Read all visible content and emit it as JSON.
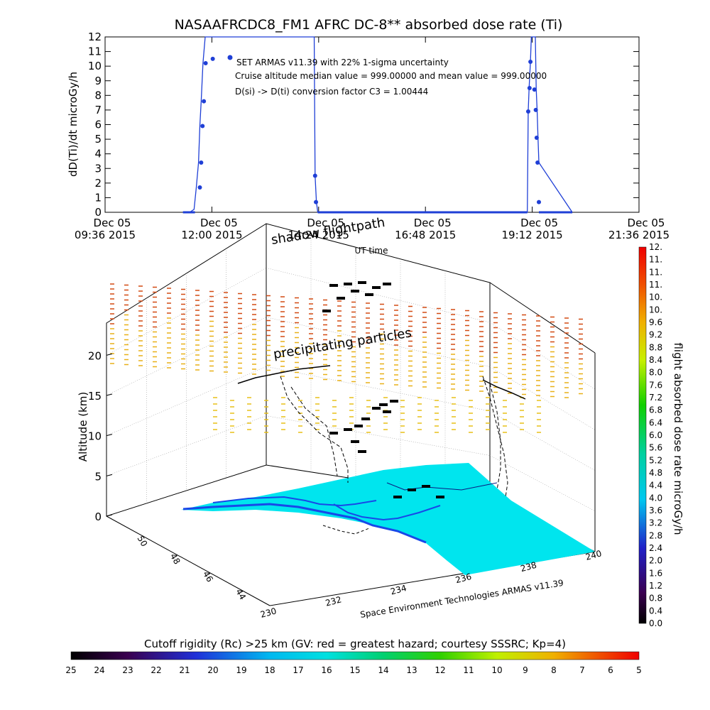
{
  "chart_data": [
    {
      "type": "line",
      "title": "NASAAFRCDC8_FM1 AFRC DC-8** absorbed dose rate (Ti)",
      "ylabel": "dD(Ti)/dt microGy/h",
      "xlabel": "UT time",
      "ylim": [
        0,
        12
      ],
      "yticks": [
        0,
        1,
        2,
        3,
        4,
        5,
        6,
        7,
        8,
        9,
        10,
        11,
        12
      ],
      "xlim_hours": [
        9.6,
        21.6
      ],
      "xticks": [
        {
          "date": "Dec 05",
          "time": "09:36 2015",
          "hour": 9.6
        },
        {
          "date": "Dec 05",
          "time": "12:00 2015",
          "hour": 12.0
        },
        {
          "date": "Dec 05",
          "time": "14:24 2015",
          "hour": 14.4
        },
        {
          "date": "Dec 05",
          "time": "16:48 2015",
          "hour": 16.8
        },
        {
          "date": "Dec 05",
          "time": "19:12 2015",
          "hour": 19.2
        },
        {
          "date": "Dec 05",
          "time": "21:36 2015",
          "hour": 21.6
        }
      ],
      "series": [
        {
          "name": "SET ARMAS v11.39 with 22% 1-sigma uncertainty",
          "color": "#1f3fd6",
          "x": [
            11.35,
            11.5,
            11.6,
            11.65,
            11.7,
            11.73,
            11.76,
            11.8,
            11.85,
            11.92,
            14.3,
            14.32,
            14.35,
            14.38,
            19.09,
            19.11,
            19.13,
            19.16,
            19.18,
            19.21,
            19.27,
            19.29,
            19.31,
            19.33,
            19.35,
            20.1
          ],
          "y": [
            0,
            0,
            0.2,
            1.7,
            3.4,
            5.9,
            7.6,
            10.2,
            12,
            12,
            12,
            2.5,
            0.7,
            0,
            0,
            6.9,
            8.5,
            10.3,
            12,
            12,
            12,
            8.4,
            7.0,
            5.1,
            3.4,
            0
          ],
          "markers": [
            [
              11.73,
              1.7
            ],
            [
              11.76,
              3.4
            ],
            [
              11.79,
              5.9
            ],
            [
              11.82,
              7.6
            ],
            [
              11.86,
              10.2
            ],
            [
              12.02,
              10.5
            ],
            [
              14.32,
              2.5
            ],
            [
              14.34,
              0.7
            ],
            [
              19.11,
              6.9
            ],
            [
              19.14,
              8.5
            ],
            [
              19.16,
              10.3
            ],
            [
              19.25,
              8.4
            ],
            [
              19.28,
              7.0
            ],
            [
              19.3,
              5.1
            ],
            [
              19.32,
              3.4
            ],
            [
              19.35,
              0.7
            ]
          ]
        }
      ],
      "annotations": [
        "SET ARMAS v11.39 with 22% 1-sigma uncertainty",
        "Cruise altitude median value = 999.00000 and mean value = 999.00000",
        "D(si) -> D(ti) conversion factor C3 = 1.00444"
      ]
    },
    {
      "type": "scatter",
      "zlabel": "Altitude (km)",
      "zticks": [
        0,
        5,
        10,
        15,
        20
      ],
      "zlim": [
        0,
        24
      ],
      "lat_ticks": [
        44,
        46,
        48,
        50
      ],
      "lon_ticks": [
        230,
        232,
        234,
        236,
        238,
        240
      ],
      "footer": "Space Environment Technologies ARMAS v11.39",
      "annotations": [
        "shadow flightpath",
        "precipitating particles"
      ],
      "colorbar": {
        "label": "flight absorbed dose rate microGy/h",
        "ticks": [
          "0.0",
          "0.4",
          "0.8",
          "1.2",
          "1.6",
          "2.0",
          "2.4",
          "2.8",
          "3.2",
          "3.6",
          "4.0",
          "4.4",
          "4.8",
          "5.2",
          "5.6",
          "6.0",
          "6.4",
          "6.8",
          "7.2",
          "7.6",
          "8.0",
          "8.4",
          "8.8",
          "9.2",
          "9.6",
          "10.",
          "10.",
          "11.",
          "11.",
          "11.",
          "12."
        ]
      }
    },
    {
      "type": "heatmap",
      "title": "Cutoff rigidity (Rc) >25 km (GV: red = greatest hazard; courtesy SSSRC; Kp=4)",
      "colorbar_ticks": [
        "25",
        "24",
        "23",
        "22",
        "21",
        "20",
        "19",
        "18",
        "17",
        "16",
        "15",
        "14",
        "13",
        "12",
        "11",
        "10",
        "9",
        "8",
        "7",
        "6",
        "5"
      ]
    }
  ],
  "colors": {
    "series": "#1f3fd6",
    "ocean": "#00e5ee",
    "land_edge": "#1848e8",
    "upper_dashes": "#d24a12",
    "mid_dashes": "#e8b018"
  }
}
